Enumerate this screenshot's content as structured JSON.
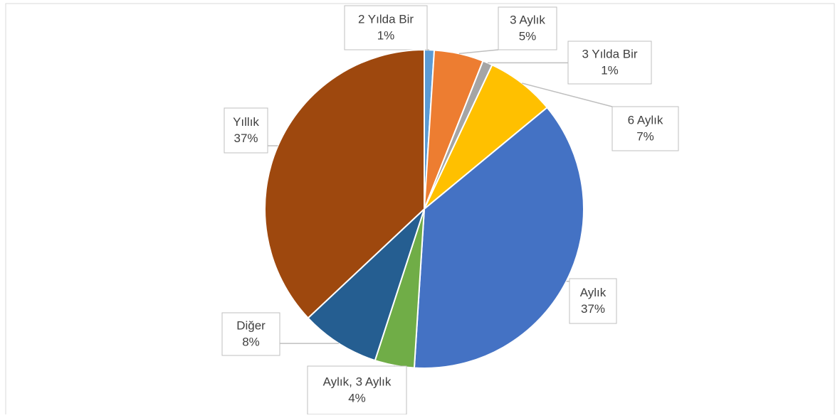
{
  "chart_data": {
    "type": "pie",
    "categories": [
      "2 Yılda Bir",
      "3 Aylık",
      "3 Yılda Bir",
      "6 Aylık",
      "Aylık",
      "Aylık, 3 Aylık",
      "Diğer",
      "Yıllık"
    ],
    "values": [
      1,
      5,
      1,
      7,
      37,
      4,
      8,
      37
    ],
    "value_labels": [
      "1%",
      "5%",
      "1%",
      "7%",
      "37%",
      "4%",
      "8%",
      "37%"
    ],
    "colors": [
      "#5b9bd5",
      "#ed7d31",
      "#a5a5a5",
      "#ffc000",
      "#4472c4",
      "#70ad47",
      "#255e91",
      "#9e480e"
    ]
  }
}
